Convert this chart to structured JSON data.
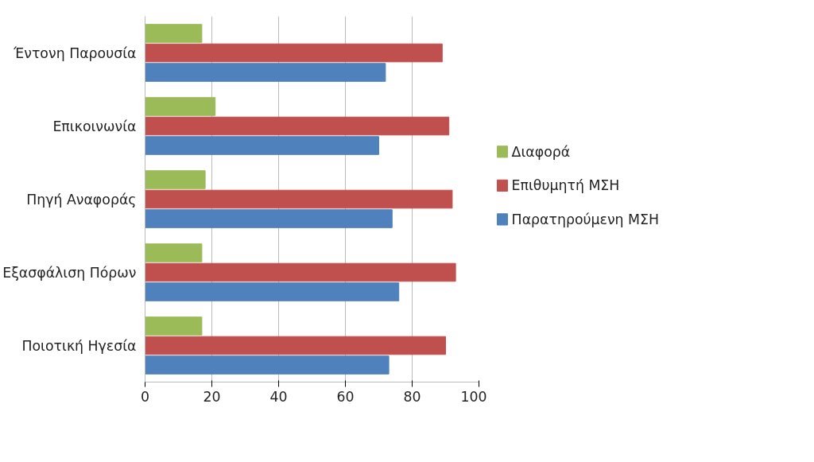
{
  "chart_data": {
    "type": "bar",
    "orientation": "horizontal",
    "categories": [
      "Έντονη Παρουσία",
      "Επικοινωνία",
      "Πηγή Αναφοράς",
      "Εξασφάλιση Πόρων",
      "Ποιοτική Ηγεσία"
    ],
    "series": [
      {
        "name": "Διαφορά",
        "color": "#9bbb59",
        "values": [
          17,
          21,
          18,
          17,
          17
        ]
      },
      {
        "name": "Επιθυμητή ΜΣΗ",
        "color": "#c0504d",
        "values": [
          89,
          91,
          92,
          93,
          90
        ]
      },
      {
        "name": "Παρατηρούμενη ΜΣΗ",
        "color": "#4f81bd",
        "values": [
          72,
          70,
          74,
          76,
          73
        ]
      }
    ],
    "xlim": [
      0,
      100
    ],
    "xticks": [
      0,
      20,
      40,
      60,
      80,
      100
    ],
    "grid": "x",
    "legend": "right"
  }
}
